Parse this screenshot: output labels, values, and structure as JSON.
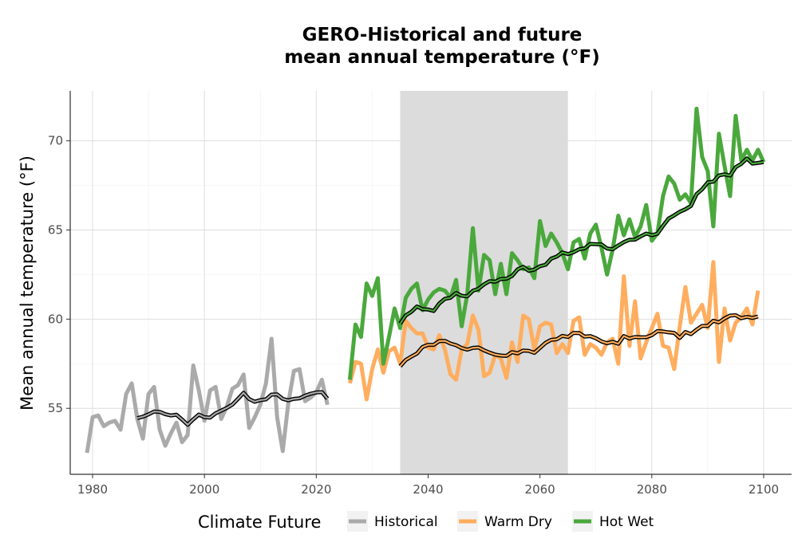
{
  "chart_data": {
    "type": "line",
    "title": "GERO-Historical and future",
    "subtitle": "mean annual temperature (°F)",
    "xlabel": "",
    "ylabel": "Mean annual temperature (°F)",
    "xlim": [
      1976,
      2105
    ],
    "ylim": [
      51.3,
      72.8
    ],
    "x_ticks": [
      "1980",
      "2000",
      "2020",
      "2040",
      "2060",
      "2080",
      "2100"
    ],
    "y_ticks": [
      "55",
      "60",
      "65",
      "70"
    ],
    "shaded_period": [
      2035,
      2065
    ],
    "grid": true,
    "legend_title": "Climate Future",
    "legend_position": "bottom",
    "colors": {
      "historical": "#aaaaaa",
      "warm_dry": "#ffad5e",
      "hot_wet": "#4aa83c",
      "rolling_mean": "#000000",
      "shade": "#dcdcdc"
    },
    "series": [
      {
        "name": "Historical",
        "key": "historical",
        "x_start": 1979,
        "values": [
          52.5,
          54.5,
          54.6,
          54.0,
          54.2,
          54.3,
          53.8,
          55.8,
          56.4,
          54.4,
          53.3,
          55.8,
          56.2,
          53.8,
          52.9,
          53.6,
          54.2,
          53.1,
          53.5,
          57.4,
          56.0,
          54.3,
          56.0,
          56.2,
          54.4,
          55.1,
          56.1,
          56.3,
          56.9,
          53.9,
          54.5,
          55.2,
          56.4,
          58.9,
          54.5,
          52.6,
          55.3,
          57.1,
          57.2,
          55.4,
          55.6,
          55.9,
          56.6,
          55.2
        ]
      },
      {
        "name": "Warm Dry",
        "key": "warm_dry",
        "x_start": 2026,
        "values": [
          56.4,
          57.6,
          57.5,
          55.5,
          57.2,
          58.3,
          57.0,
          58.2,
          58.4,
          57.5,
          59.9,
          59.5,
          59.2,
          59.2,
          58.4,
          58.3,
          59.1,
          58.3,
          56.9,
          56.6,
          58.3,
          58.6,
          60.2,
          59.4,
          56.8,
          57.0,
          58.0,
          57.8,
          56.7,
          58.7,
          57.6,
          60.2,
          60.0,
          58.3,
          59.6,
          59.8,
          59.7,
          58.1,
          58.6,
          58.1,
          59.9,
          60.1,
          58.0,
          58.6,
          58.4,
          58.0,
          58.7,
          58.9,
          57.5,
          62.4,
          58.5,
          61.0,
          57.8,
          58.7,
          59.5,
          60.3,
          58.5,
          58.4,
          57.2,
          59.6,
          61.8,
          59.8,
          60.3,
          60.8,
          59.5,
          63.2,
          57.6,
          60.6,
          58.8,
          59.8,
          60.1,
          60.6,
          59.7,
          61.6
        ]
      },
      {
        "name": "Hot Wet",
        "key": "hot_wet",
        "x_start": 2026,
        "values": [
          56.6,
          59.7,
          59.0,
          62.0,
          61.3,
          62.3,
          57.5,
          59.0,
          60.6,
          59.5,
          61.2,
          61.7,
          62.0,
          60.5,
          61.1,
          61.5,
          61.7,
          61.6,
          61.2,
          62.2,
          59.6,
          61.4,
          65.1,
          61.6,
          63.6,
          63.3,
          61.4,
          63.1,
          61.4,
          63.7,
          63.3,
          62.8,
          62.9,
          62.3,
          65.5,
          64.1,
          64.8,
          64.3,
          63.7,
          62.8,
          64.3,
          64.5,
          63.4,
          64.8,
          65.3,
          64.0,
          62.5,
          63.9,
          65.8,
          64.7,
          65.6,
          64.6,
          65.2,
          66.4,
          64.4,
          64.8,
          66.9,
          68.0,
          67.6,
          66.7,
          67.0,
          66.5,
          71.8,
          69.1,
          68.3,
          65.2,
          70.4,
          68.6,
          66.9,
          71.4,
          68.9,
          69.5,
          68.9,
          69.5,
          68.8
        ]
      }
    ]
  }
}
